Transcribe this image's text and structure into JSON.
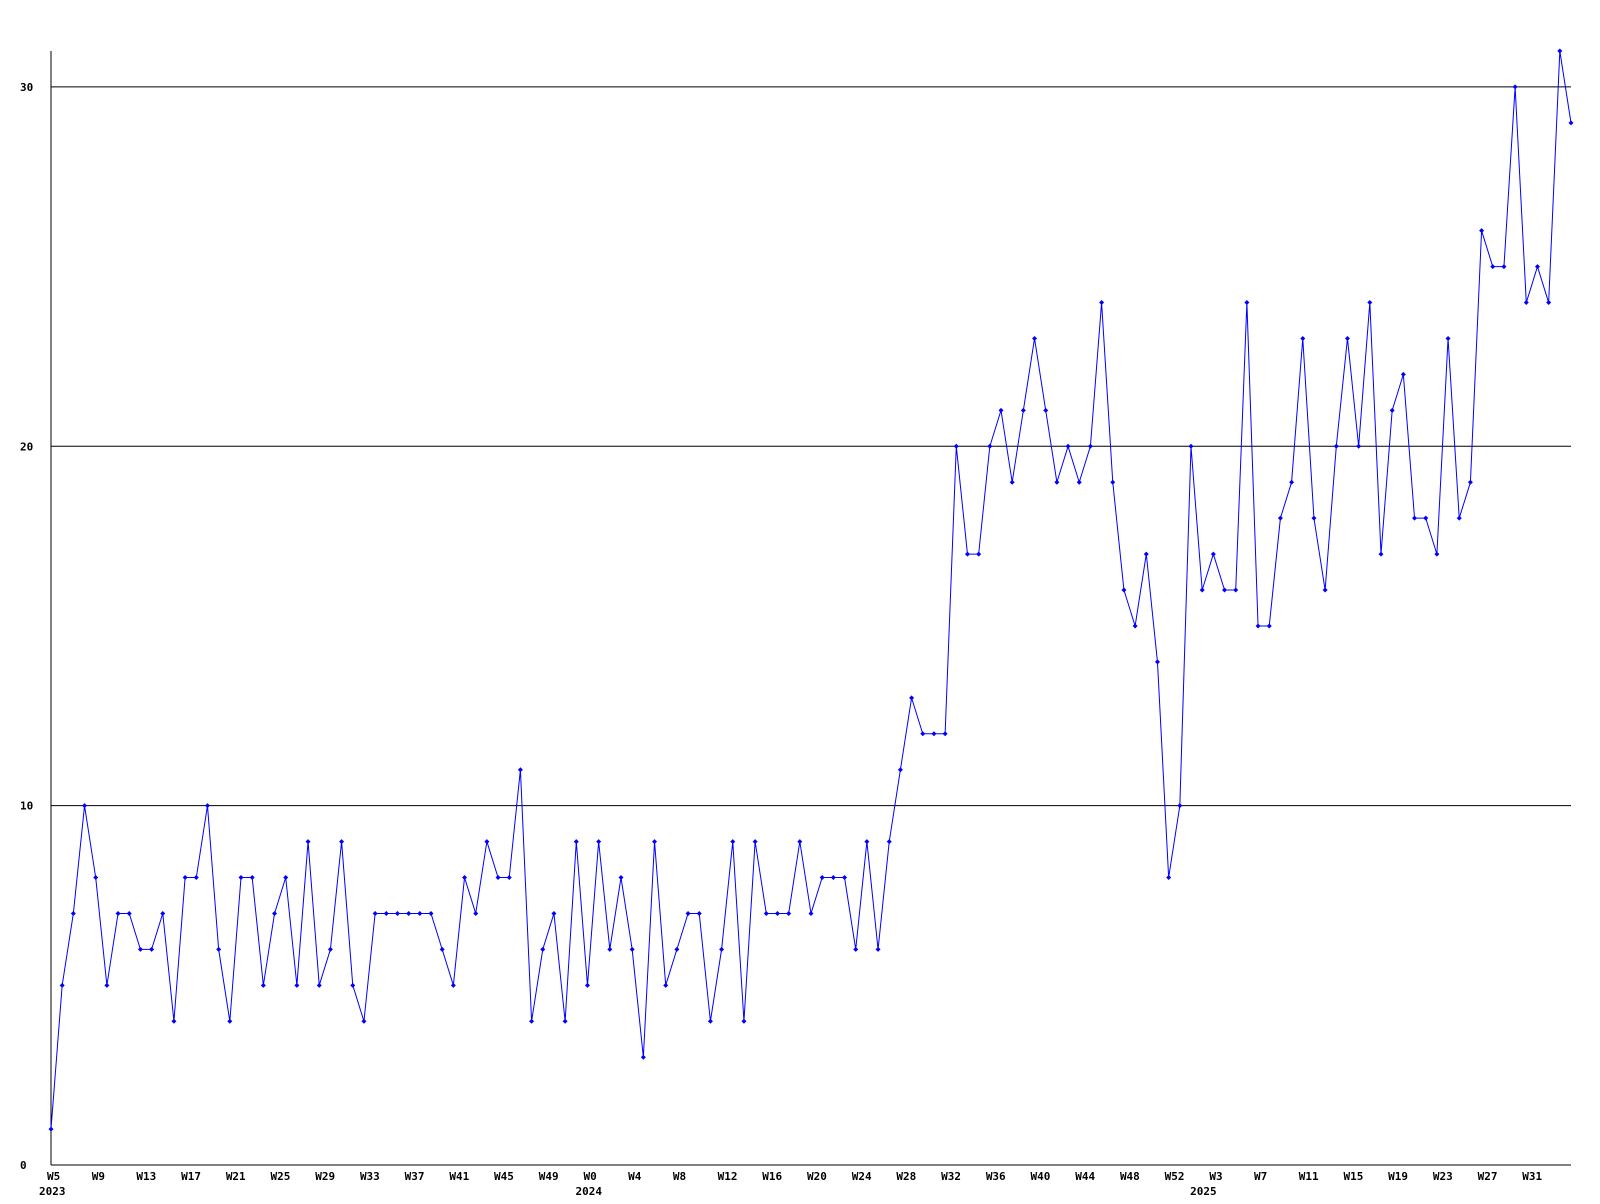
{
  "chart_data": {
    "type": "line",
    "color": "#0000ff",
    "grid": true,
    "ylim": [
      0,
      31
    ],
    "yticks": [
      0,
      10,
      20,
      30
    ],
    "categories": [
      "W5",
      null,
      null,
      null,
      "W9",
      null,
      null,
      null,
      "W13",
      null,
      null,
      null,
      "W17",
      null,
      null,
      null,
      "W21",
      null,
      null,
      null,
      "W25",
      null,
      null,
      null,
      "W29",
      null,
      null,
      null,
      "W33",
      null,
      null,
      null,
      "W37",
      null,
      null,
      null,
      "W41",
      null,
      null,
      null,
      "W45",
      null,
      null,
      null,
      "W49",
      null,
      null,
      null,
      "W0",
      null,
      null,
      null,
      "W4",
      null,
      null,
      null,
      "W8",
      null,
      null,
      null,
      "W12",
      null,
      null,
      null,
      "W16",
      null,
      null,
      null,
      "W20",
      null,
      null,
      null,
      "W24",
      null,
      null,
      null,
      "W28",
      null,
      null,
      null,
      "W32",
      null,
      null,
      null,
      "W36",
      null,
      null,
      null,
      "W40",
      null,
      null,
      null,
      "W44",
      null,
      null,
      null,
      "W48",
      null,
      null,
      null,
      "W52",
      null,
      null,
      null,
      "W3",
      null,
      null,
      null,
      "W7",
      null,
      null,
      null,
      "W11",
      null,
      null,
      null,
      "W15",
      null,
      null,
      null,
      "W19",
      null,
      null,
      null,
      "W23",
      null,
      null,
      null,
      "W27",
      null,
      null,
      null,
      "W31",
      null,
      null,
      null,
      null
    ],
    "years": [
      "2023",
      null,
      null,
      null,
      null,
      null,
      null,
      null,
      null,
      null,
      null,
      null,
      null,
      null,
      null,
      null,
      null,
      null,
      null,
      null,
      null,
      null,
      null,
      null,
      null,
      null,
      null,
      null,
      null,
      null,
      null,
      null,
      null,
      null,
      null,
      null,
      null,
      null,
      null,
      null,
      null,
      null,
      null,
      null,
      null,
      null,
      null,
      null,
      "2024",
      null,
      null,
      null,
      null,
      null,
      null,
      null,
      null,
      null,
      null,
      null,
      null,
      null,
      null,
      null,
      null,
      null,
      null,
      null,
      null,
      null,
      null,
      null,
      null,
      null,
      null,
      null,
      null,
      null,
      null,
      null,
      null,
      null,
      null,
      null,
      null,
      null,
      null,
      null,
      null,
      null,
      null,
      null,
      null,
      null,
      null,
      null,
      null,
      null,
      null,
      null,
      null,
      null,
      null,
      "2025",
      null,
      null,
      null,
      null,
      null,
      null,
      null,
      null,
      null,
      null,
      null,
      null,
      null,
      null,
      null,
      null,
      null,
      null,
      null,
      null,
      null,
      null,
      null,
      null,
      null,
      null,
      null,
      null,
      null,
      null,
      null,
      null,
      null,
      null,
      null
    ],
    "values": [
      1,
      5,
      7,
      10,
      8,
      5,
      7,
      7,
      6,
      6,
      7,
      4,
      8,
      8,
      10,
      6,
      4,
      8,
      8,
      5,
      7,
      8,
      5,
      9,
      5,
      6,
      9,
      5,
      4,
      7,
      7,
      7,
      7,
      7,
      7,
      6,
      5,
      8,
      7,
      9,
      8,
      8,
      11,
      4,
      6,
      7,
      4,
      9,
      5,
      9,
      6,
      8,
      6,
      3,
      9,
      5,
      6,
      7,
      7,
      4,
      6,
      9,
      4,
      9,
      7,
      7,
      7,
      9,
      7,
      8,
      8,
      8,
      6,
      9,
      6,
      9,
      11,
      13,
      12,
      12,
      12,
      20,
      17,
      17,
      20,
      21,
      19,
      21,
      23,
      21,
      19,
      20,
      19,
      20,
      24,
      19,
      16,
      15,
      17,
      14,
      8,
      10,
      20,
      16,
      17,
      16,
      16,
      24,
      15,
      15,
      18,
      19,
      23,
      18,
      16,
      20,
      23,
      20,
      24,
      17,
      21,
      22,
      18,
      18,
      17,
      23,
      18,
      19,
      26,
      25,
      25,
      30,
      24,
      25,
      24,
      31,
      29
    ]
  }
}
